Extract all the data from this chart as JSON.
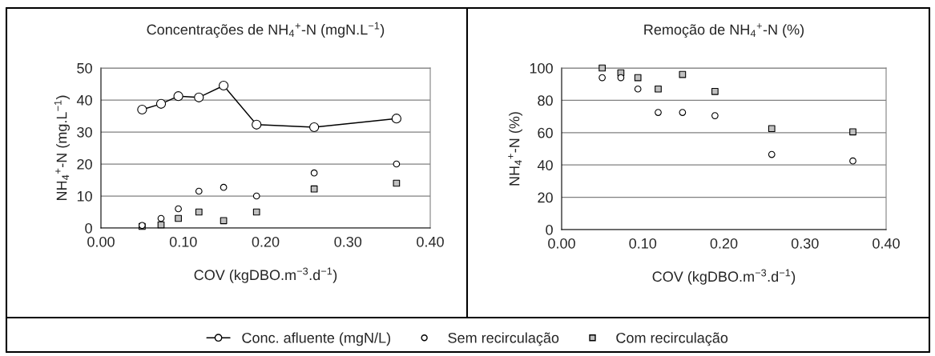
{
  "chart_data": [
    {
      "type": "scatter",
      "title": "Concentrações de NH$_{4}$$^{+}$-N (mgN.L$^{−1}$)",
      "xlabel": "COV (kgDBO.m$^{−3}$.d$^{−1}$)",
      "ylabel": "NH$_{4}$$^{+}$-N (mg.L$^{−1}$)",
      "x": [
        0.05,
        0.073,
        0.094,
        0.119,
        0.149,
        0.189,
        0.259,
        0.359
      ],
      "series": [
        {
          "name": "Conc. afluente (mgN/L)",
          "type": "line",
          "marker": "circle",
          "color": "#000000",
          "values": [
            37,
            38.8,
            41.2,
            40.8,
            44.5,
            32.3,
            31.5,
            34.2
          ]
        },
        {
          "name": "Sem recirculação",
          "marker": "circle",
          "color": "#ffffff",
          "values": [
            0.8,
            3,
            6,
            11.5,
            12.7,
            10,
            17.2,
            20
          ]
        },
        {
          "name": "Com recirculação",
          "marker": "square",
          "color": "#c0c0c0",
          "values": [
            0.5,
            1,
            3,
            5,
            2.3,
            5,
            12.2,
            14
          ]
        }
      ],
      "xlim": [
        0,
        0.4
      ],
      "xticks": [
        {
          "value": 0,
          "label": "0.00"
        },
        {
          "value": 0.1,
          "label": "0.10"
        },
        {
          "value": 0.2,
          "label": "0.20"
        },
        {
          "value": 0.3,
          "label": "0.30"
        },
        {
          "value": 0.4,
          "label": "0.40"
        }
      ],
      "ylim": [
        0,
        50
      ],
      "yticks": [
        0,
        10,
        20,
        30,
        40,
        50
      ],
      "grid": "y",
      "legend": "bottom"
    },
    {
      "type": "scatter",
      "title": "Remoção de NH$_{4}$$^{+}$-N (%)",
      "xlabel": "COV (kgDBO.m$^{−3}$.d$^{−1}$)",
      "ylabel": "NH$_{4}$$^{+}$-N (%)",
      "x": [
        0.05,
        0.073,
        0.094,
        0.119,
        0.149,
        0.189,
        0.259,
        0.359
      ],
      "series": [
        {
          "marker": "circle",
          "color": "#ffffff",
          "values": [
            94,
            94,
            87,
            72.5,
            72.5,
            70.5,
            46.5,
            42.5
          ]
        },
        {
          "marker": "square",
          "color": "#c0c0c0",
          "values": [
            100,
            97,
            94,
            87,
            96,
            85.5,
            62.5,
            60.5
          ]
        }
      ],
      "xlim": [
        0,
        0.4
      ],
      "xticks": [
        {
          "value": 0,
          "label": "0.00"
        },
        {
          "value": 0.1,
          "label": "0.10"
        },
        {
          "value": 0.2,
          "label": "0.20"
        },
        {
          "value": 0.3,
          "label": "0.30"
        },
        {
          "value": 0.4,
          "label": "0.40"
        }
      ],
      "ylim": [
        0,
        100
      ],
      "yticks": [
        0,
        20,
        40,
        60,
        80,
        100
      ],
      "grid": "y"
    }
  ]
}
